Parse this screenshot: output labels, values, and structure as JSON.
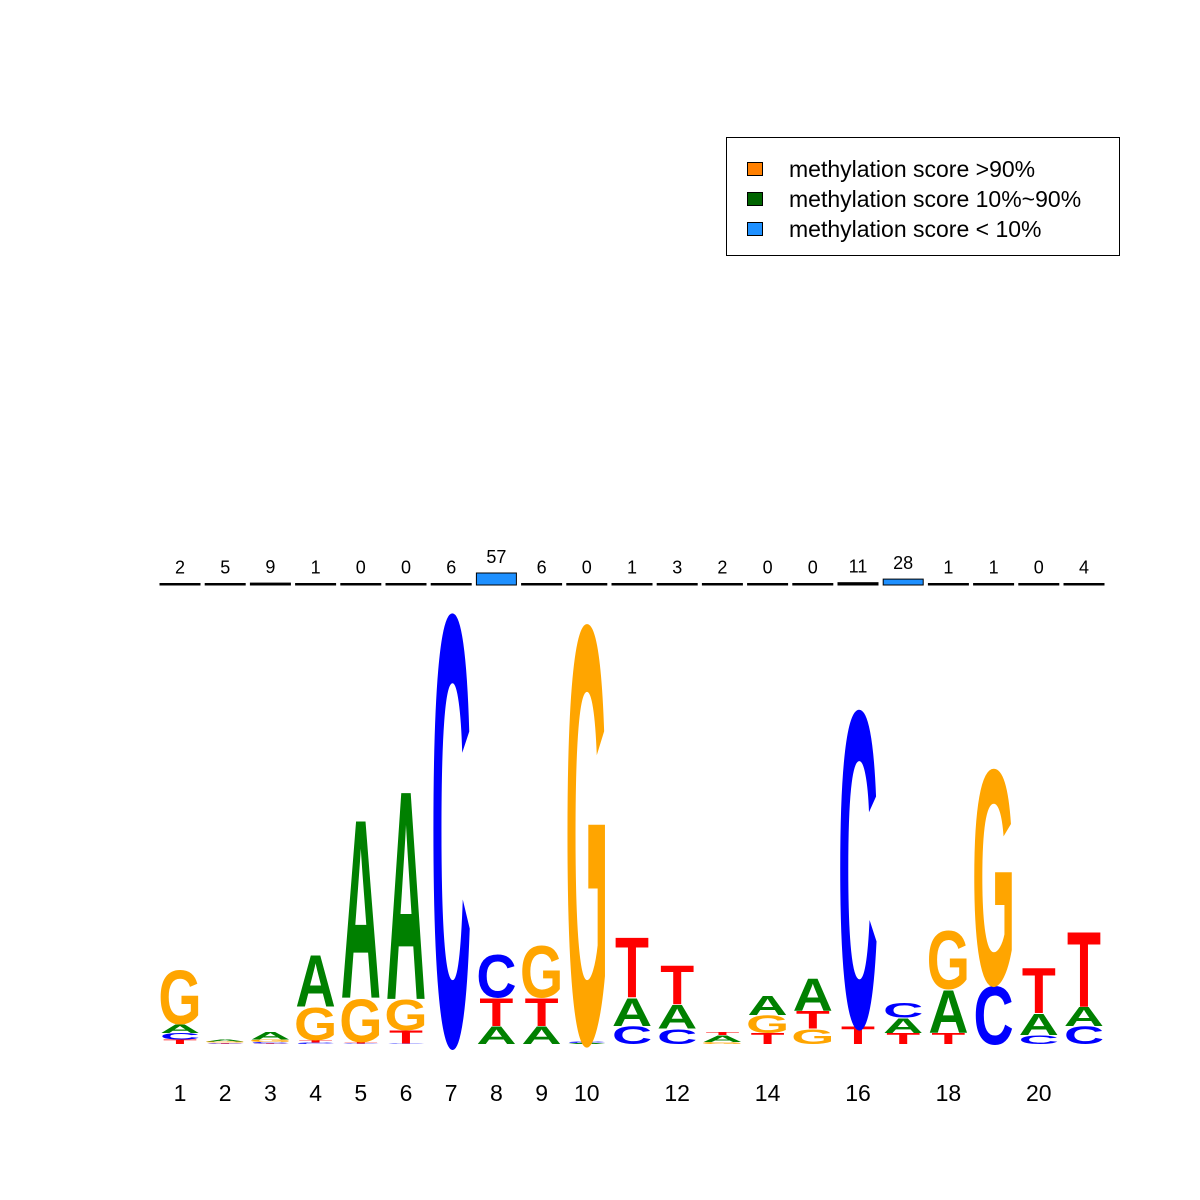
{
  "legend": {
    "items": [
      {
        "label": "methylation score >90%",
        "color": "#FF8000"
      },
      {
        "label": "methylation score 10%~90%",
        "color": "#006400"
      },
      {
        "label": "methylation score < 10%",
        "color": "#1E90FF"
      }
    ]
  },
  "colors": {
    "A": "#008000",
    "C": "#0000FF",
    "G": "#FFA500",
    "T": "#FF0000"
  },
  "chart_data": {
    "type": "sequence-logo",
    "x_tick_labels": [
      "1",
      "2",
      "3",
      "4",
      "5",
      "6",
      "7",
      "8",
      "9",
      "10",
      "12",
      "14",
      "16",
      "18",
      "20"
    ],
    "x_tick_positions": [
      1,
      2,
      3,
      4,
      5,
      6,
      7,
      8,
      9,
      10,
      12,
      14,
      16,
      18,
      20
    ],
    "ylim": [
      0,
      2
    ],
    "positions": [
      {
        "pos": 1,
        "methylation_count": 2,
        "letters": [
          {
            "base": "T",
            "height": 0.02
          },
          {
            "base": "C",
            "height": 0.03
          },
          {
            "base": "A",
            "height": 0.04
          },
          {
            "base": "G",
            "height": 0.25
          }
        ]
      },
      {
        "pos": 2,
        "methylation_count": 5,
        "letters": [
          {
            "base": "T",
            "height": 0.003
          },
          {
            "base": "C",
            "height": 0.004
          },
          {
            "base": "G",
            "height": 0.005
          },
          {
            "base": "A",
            "height": 0.008
          }
        ]
      },
      {
        "pos": 3,
        "methylation_count": 9,
        "letters": [
          {
            "base": "T",
            "height": 0.003
          },
          {
            "base": "C",
            "height": 0.005
          },
          {
            "base": "G",
            "height": 0.012
          },
          {
            "base": "A",
            "height": 0.035
          }
        ]
      },
      {
        "pos": 4,
        "methylation_count": 1,
        "letters": [
          {
            "base": "C",
            "height": 0.006
          },
          {
            "base": "T",
            "height": 0.012
          },
          {
            "base": "G",
            "height": 0.15
          },
          {
            "base": "A",
            "height": 0.24
          }
        ]
      },
      {
        "pos": 5,
        "methylation_count": 0,
        "letters": [
          {
            "base": "C",
            "height": 0.003
          },
          {
            "base": "T",
            "height": 0.006
          },
          {
            "base": "G",
            "height": 0.2
          },
          {
            "base": "A",
            "height": 0.83
          }
        ]
      },
      {
        "pos": 6,
        "methylation_count": 0,
        "letters": [
          {
            "base": "C",
            "height": 0.003
          },
          {
            "base": "T",
            "height": 0.06
          },
          {
            "base": "G",
            "height": 0.14
          },
          {
            "base": "A",
            "height": 0.97
          }
        ]
      },
      {
        "pos": 7,
        "methylation_count": 6,
        "letters": [
          {
            "base": "C",
            "height": 2.0
          }
        ]
      },
      {
        "pos": 8,
        "methylation_count": 57,
        "letters": [
          {
            "base": "A",
            "height": 0.08
          },
          {
            "base": "T",
            "height": 0.13
          },
          {
            "base": "C",
            "height": 0.2
          }
        ]
      },
      {
        "pos": 9,
        "methylation_count": 6,
        "letters": [
          {
            "base": "A",
            "height": 0.08
          },
          {
            "base": "T",
            "height": 0.13
          },
          {
            "base": "G",
            "height": 0.24
          }
        ]
      },
      {
        "pos": 10,
        "methylation_count": 0,
        "letters": [
          {
            "base": "A",
            "height": 0.005
          },
          {
            "base": "C",
            "height": 0.005
          },
          {
            "base": "G",
            "height": 1.94
          }
        ]
      },
      {
        "pos": 11,
        "methylation_count": 1,
        "letters": [
          {
            "base": "C",
            "height": 0.08
          },
          {
            "base": "A",
            "height": 0.13
          },
          {
            "base": "T",
            "height": 0.28
          }
        ]
      },
      {
        "pos": 12,
        "methylation_count": 3,
        "letters": [
          {
            "base": "C",
            "height": 0.07
          },
          {
            "base": "A",
            "height": 0.11
          },
          {
            "base": "T",
            "height": 0.18
          }
        ]
      },
      {
        "pos": 13,
        "methylation_count": 2,
        "letters": [
          {
            "base": "G",
            "height": 0.01
          },
          {
            "base": "A",
            "height": 0.03
          },
          {
            "base": "T",
            "height": 0.015
          }
        ]
      },
      {
        "pos": 14,
        "methylation_count": 0,
        "letters": [
          {
            "base": "T",
            "height": 0.05
          },
          {
            "base": "G",
            "height": 0.08
          },
          {
            "base": "A",
            "height": 0.09
          }
        ]
      },
      {
        "pos": 15,
        "methylation_count": 0,
        "letters": [
          {
            "base": "G",
            "height": 0.07
          },
          {
            "base": "T",
            "height": 0.08
          },
          {
            "base": "A",
            "height": 0.15
          }
        ]
      },
      {
        "pos": 16,
        "methylation_count": 11,
        "letters": [
          {
            "base": "T",
            "height": 0.08
          },
          {
            "base": "C",
            "height": 1.47
          }
        ]
      },
      {
        "pos": 17,
        "methylation_count": 28,
        "letters": [
          {
            "base": "T",
            "height": 0.05
          },
          {
            "base": "A",
            "height": 0.07
          },
          {
            "base": "C",
            "height": 0.07
          }
        ]
      },
      {
        "pos": 18,
        "methylation_count": 1,
        "letters": [
          {
            "base": "T",
            "height": 0.05
          },
          {
            "base": "A",
            "height": 0.2
          },
          {
            "base": "G",
            "height": 0.27
          }
        ]
      },
      {
        "pos": 19,
        "methylation_count": 1,
        "letters": [
          {
            "base": "C",
            "height": 0.27
          },
          {
            "base": "G",
            "height": 1.0
          }
        ]
      },
      {
        "pos": 20,
        "methylation_count": 0,
        "letters": [
          {
            "base": "C",
            "height": 0.04
          },
          {
            "base": "A",
            "height": 0.1
          },
          {
            "base": "T",
            "height": 0.21
          }
        ]
      },
      {
        "pos": 21,
        "methylation_count": 4,
        "letters": [
          {
            "base": "C",
            "height": 0.08
          },
          {
            "base": "A",
            "height": 0.09
          },
          {
            "base": "T",
            "height": 0.35
          }
        ]
      }
    ]
  }
}
